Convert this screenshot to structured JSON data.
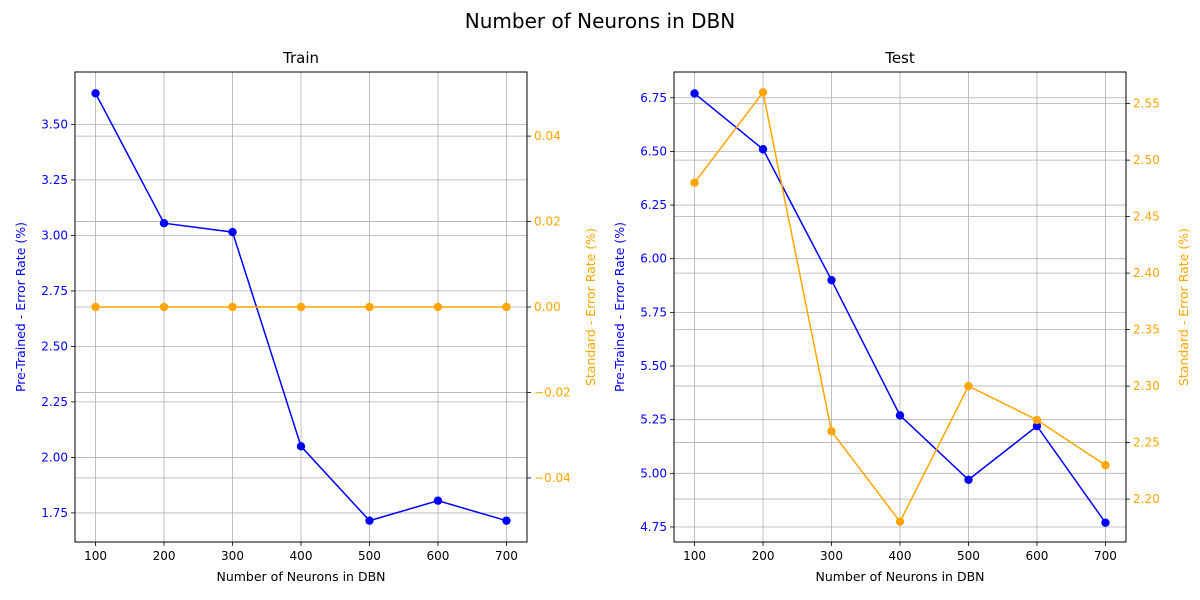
{
  "figure": {
    "suptitle": "Number of Neurons in DBN"
  },
  "colors": {
    "primary": "#0000ff",
    "secondary": "#ffa500",
    "grid": "#b0b0b0",
    "axes": "#000000"
  },
  "chart_data": [
    {
      "type": "line",
      "title": "Train",
      "xlabel": "Number of Neurons in DBN",
      "ylabel_left": "Pre-Trained - Error Rate (%)",
      "ylabel_right": "Standard - Error Rate (%)",
      "x": [
        100,
        200,
        300,
        400,
        500,
        600,
        700
      ],
      "xlim": [
        70,
        730
      ],
      "xticks": [
        100,
        200,
        300,
        400,
        500,
        600,
        700
      ],
      "grid": true,
      "series": [
        {
          "axis": "left",
          "color": "#0000ff",
          "marker": "circle",
          "values": [
            3.64,
            3.055,
            3.015,
            2.05,
            1.715,
            1.805,
            1.715
          ]
        },
        {
          "axis": "right",
          "color": "#ffa500",
          "marker": "circle",
          "values": [
            0.0,
            0.0,
            0.0,
            0.0,
            0.0,
            0.0,
            0.0
          ]
        }
      ],
      "ylim_left": [
        1.619,
        3.736
      ],
      "yticks_left": [
        1.75,
        2.0,
        2.25,
        2.5,
        2.75,
        3.0,
        3.25,
        3.5
      ],
      "yticks_left_labels": [
        "1.75",
        "2.00",
        "2.25",
        "2.50",
        "2.75",
        "3.00",
        "3.25",
        "3.50"
      ],
      "ylim_right": [
        -0.055,
        0.055
      ],
      "yticks_right": [
        -0.04,
        -0.02,
        0.0,
        0.02,
        0.04
      ],
      "yticks_right_labels": [
        "−0.04",
        "−0.02",
        "0.00",
        "0.02",
        "0.04"
      ]
    },
    {
      "type": "line",
      "title": "Test",
      "xlabel": "Number of Neurons in DBN",
      "ylabel_left": "Pre-Trained - Error Rate (%)",
      "ylabel_right": "Standard - Error Rate (%)",
      "x": [
        100,
        200,
        300,
        400,
        500,
        600,
        700
      ],
      "xlim": [
        70,
        730
      ],
      "xticks": [
        100,
        200,
        300,
        400,
        500,
        600,
        700
      ],
      "grid": true,
      "series": [
        {
          "axis": "left",
          "color": "#0000ff",
          "marker": "circle",
          "values": [
            6.77,
            6.51,
            5.9,
            5.27,
            4.97,
            5.22,
            4.77
          ]
        },
        {
          "axis": "right",
          "color": "#ffa500",
          "marker": "circle",
          "values": [
            2.48,
            2.56,
            2.26,
            2.18,
            2.3,
            2.27,
            2.23
          ]
        }
      ],
      "ylim_left": [
        4.68,
        6.87
      ],
      "yticks_left": [
        4.75,
        5.0,
        5.25,
        5.5,
        5.75,
        6.0,
        6.25,
        6.5,
        6.75
      ],
      "yticks_left_labels": [
        "4.75",
        "5.00",
        "5.25",
        "5.50",
        "5.75",
        "6.00",
        "6.25",
        "6.50",
        "6.75"
      ],
      "ylim_right": [
        2.162,
        2.578
      ],
      "yticks_right": [
        2.2,
        2.25,
        2.3,
        2.35,
        2.4,
        2.45,
        2.5,
        2.55
      ],
      "yticks_right_labels": [
        "2.20",
        "2.25",
        "2.30",
        "2.35",
        "2.40",
        "2.45",
        "2.50",
        "2.55"
      ]
    }
  ]
}
